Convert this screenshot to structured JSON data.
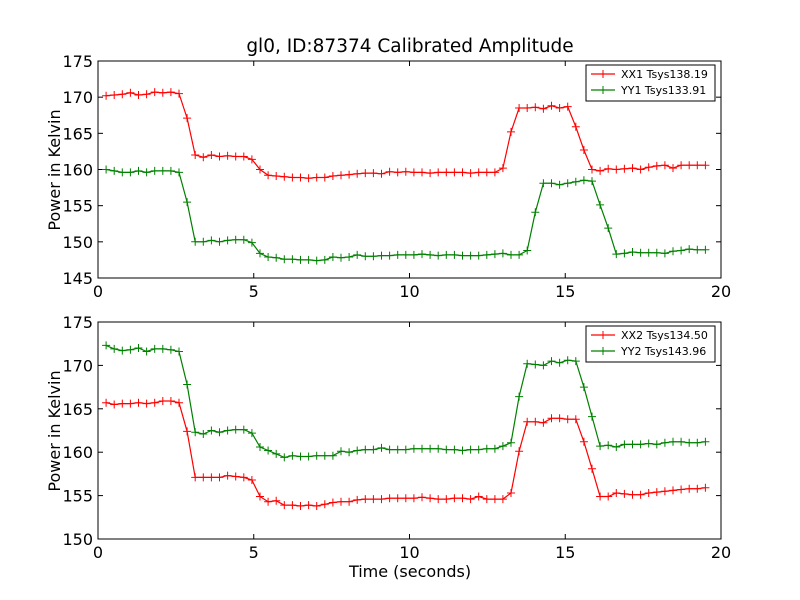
{
  "chart_data": [
    {
      "type": "line",
      "title": "gl0, ID:87374 Calibrated Amplitude",
      "xlabel": "",
      "ylabel": "Power in Kelvin",
      "xlim": [
        0,
        20
      ],
      "ylim": [
        145,
        175
      ],
      "xticks": [
        0,
        5,
        10,
        15,
        20
      ],
      "yticks": [
        145,
        150,
        155,
        160,
        165,
        170,
        175
      ],
      "grid": false,
      "legend_position": "top-right",
      "x": [
        0.26,
        0.52,
        0.78,
        1.04,
        1.3,
        1.56,
        1.82,
        2.08,
        2.34,
        2.6,
        2.86,
        3.12,
        3.38,
        3.64,
        3.9,
        4.16,
        4.42,
        4.68,
        4.94,
        5.2,
        5.46,
        5.72,
        5.98,
        6.24,
        6.5,
        6.76,
        7.02,
        7.28,
        7.54,
        7.8,
        8.06,
        8.32,
        8.58,
        8.84,
        9.1,
        9.36,
        9.62,
        9.88,
        10.14,
        10.4,
        10.66,
        10.92,
        11.18,
        11.44,
        11.7,
        11.96,
        12.22,
        12.48,
        12.74,
        13.0,
        13.26,
        13.52,
        13.78,
        14.04,
        14.3,
        14.56,
        14.82,
        15.08,
        15.34,
        15.6,
        15.86,
        16.12,
        16.38,
        16.64,
        16.9,
        17.16,
        17.42,
        17.68,
        17.94,
        18.2,
        18.46,
        18.72,
        18.98,
        19.24,
        19.5
      ],
      "series": [
        {
          "name": "XX1 Tsys138.19",
          "color": "#ff0000",
          "values": [
            170.2,
            170.3,
            170.4,
            170.6,
            170.3,
            170.4,
            170.7,
            170.6,
            170.7,
            170.5,
            167.1,
            162.0,
            161.7,
            162.0,
            161.8,
            161.9,
            161.8,
            161.8,
            161.4,
            160.0,
            159.2,
            159.1,
            159.0,
            158.9,
            158.9,
            158.8,
            158.9,
            158.9,
            159.1,
            159.2,
            159.3,
            159.4,
            159.5,
            159.5,
            159.4,
            159.7,
            159.6,
            159.7,
            159.6,
            159.6,
            159.5,
            159.6,
            159.6,
            159.6,
            159.6,
            159.5,
            159.6,
            159.6,
            159.6,
            160.2,
            165.2,
            168.5,
            168.5,
            168.6,
            168.4,
            168.8,
            168.5,
            168.7,
            165.9,
            162.7,
            160.0,
            159.8,
            160.1,
            160.0,
            160.1,
            160.2,
            160.0,
            160.3,
            160.5,
            160.6,
            160.2,
            160.6,
            160.6,
            160.6,
            160.6
          ]
        },
        {
          "name": "YY1 Tsys133.91",
          "color": "#008000",
          "values": [
            160.0,
            159.8,
            159.6,
            159.6,
            159.8,
            159.6,
            159.8,
            159.8,
            159.8,
            159.6,
            155.5,
            150.0,
            150.0,
            150.2,
            150.0,
            150.2,
            150.3,
            150.3,
            149.9,
            148.4,
            147.9,
            147.8,
            147.6,
            147.6,
            147.5,
            147.5,
            147.4,
            147.5,
            147.9,
            147.8,
            147.9,
            148.2,
            148.0,
            148.0,
            148.1,
            148.1,
            148.2,
            148.2,
            148.2,
            148.3,
            148.2,
            148.1,
            148.2,
            148.2,
            148.1,
            148.1,
            148.1,
            148.2,
            148.3,
            148.4,
            148.2,
            148.2,
            148.8,
            154.1,
            158.1,
            158.1,
            157.9,
            158.1,
            158.3,
            158.5,
            158.4,
            155.1,
            151.9,
            148.3,
            148.4,
            148.6,
            148.5,
            148.5,
            148.5,
            148.4,
            148.7,
            148.8,
            149.0,
            148.9,
            148.9
          ]
        }
      ]
    },
    {
      "type": "line",
      "title": "",
      "xlabel": "Time (seconds)",
      "ylabel": "Power in Kelvin",
      "xlim": [
        0,
        20
      ],
      "ylim": [
        150,
        175
      ],
      "xticks": [
        0,
        5,
        10,
        15,
        20
      ],
      "yticks": [
        150,
        155,
        160,
        165,
        170,
        175
      ],
      "grid": false,
      "legend_position": "top-right",
      "x": [
        0.26,
        0.52,
        0.78,
        1.04,
        1.3,
        1.56,
        1.82,
        2.08,
        2.34,
        2.6,
        2.86,
        3.12,
        3.38,
        3.64,
        3.9,
        4.16,
        4.42,
        4.68,
        4.94,
        5.2,
        5.46,
        5.72,
        5.98,
        6.24,
        6.5,
        6.76,
        7.02,
        7.28,
        7.54,
        7.8,
        8.06,
        8.32,
        8.58,
        8.84,
        9.1,
        9.36,
        9.62,
        9.88,
        10.14,
        10.4,
        10.66,
        10.92,
        11.18,
        11.44,
        11.7,
        11.96,
        12.22,
        12.48,
        12.74,
        13.0,
        13.26,
        13.52,
        13.78,
        14.04,
        14.3,
        14.56,
        14.82,
        15.08,
        15.34,
        15.6,
        15.86,
        16.12,
        16.38,
        16.64,
        16.9,
        17.16,
        17.42,
        17.68,
        17.94,
        18.2,
        18.46,
        18.72,
        18.98,
        19.24,
        19.5
      ],
      "series": [
        {
          "name": "XX2 Tsys134.50",
          "color": "#ff0000",
          "values": [
            165.7,
            165.5,
            165.6,
            165.6,
            165.7,
            165.6,
            165.7,
            165.9,
            165.9,
            165.7,
            162.4,
            157.1,
            157.1,
            157.1,
            157.1,
            157.3,
            157.2,
            157.1,
            156.8,
            154.9,
            154.3,
            154.4,
            153.9,
            153.9,
            153.8,
            153.9,
            153.8,
            154.0,
            154.2,
            154.3,
            154.3,
            154.5,
            154.6,
            154.6,
            154.6,
            154.7,
            154.7,
            154.7,
            154.7,
            154.8,
            154.7,
            154.6,
            154.6,
            154.7,
            154.7,
            154.6,
            154.9,
            154.6,
            154.6,
            154.6,
            155.3,
            160.1,
            163.5,
            163.5,
            163.4,
            163.9,
            163.9,
            163.8,
            163.8,
            161.2,
            158.1,
            154.9,
            154.9,
            155.3,
            155.2,
            155.1,
            155.1,
            155.3,
            155.4,
            155.5,
            155.6,
            155.7,
            155.8,
            155.8,
            155.9
          ]
        },
        {
          "name": "YY2 Tsys143.96",
          "color": "#008000",
          "values": [
            172.3,
            171.9,
            171.7,
            171.8,
            172.0,
            171.6,
            171.9,
            171.9,
            171.8,
            171.6,
            167.8,
            162.3,
            162.1,
            162.5,
            162.3,
            162.5,
            162.6,
            162.6,
            162.2,
            160.6,
            160.2,
            159.8,
            159.4,
            159.6,
            159.5,
            159.5,
            159.6,
            159.6,
            159.6,
            160.1,
            160.0,
            160.2,
            160.3,
            160.3,
            160.5,
            160.3,
            160.3,
            160.3,
            160.4,
            160.4,
            160.4,
            160.4,
            160.3,
            160.3,
            160.2,
            160.3,
            160.3,
            160.4,
            160.4,
            160.7,
            161.1,
            166.4,
            170.2,
            170.1,
            170.0,
            170.5,
            170.3,
            170.6,
            170.5,
            167.5,
            164.1,
            160.7,
            160.8,
            160.6,
            160.9,
            160.9,
            160.9,
            161.0,
            160.9,
            161.1,
            161.2,
            161.2,
            161.1,
            161.1,
            161.2
          ]
        }
      ]
    }
  ]
}
